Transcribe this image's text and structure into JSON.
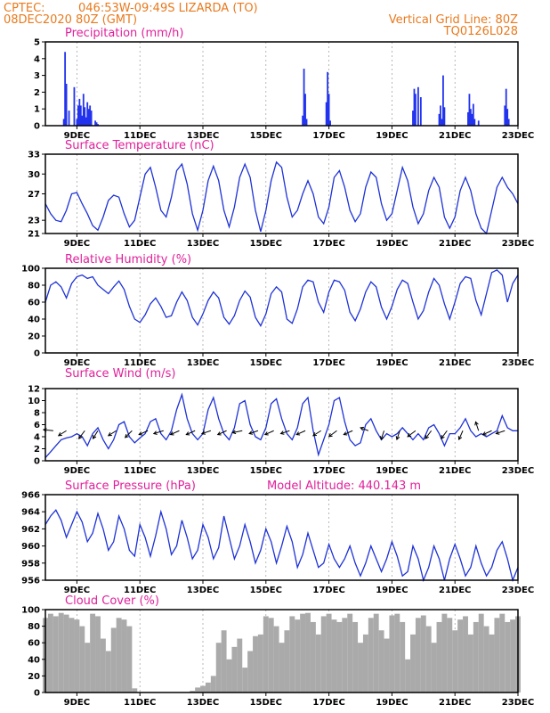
{
  "header": {
    "source": "CPTEC:",
    "location": "046:53W-09:49S  LIZARDA (TO)",
    "date": "08DEC2020 80Z (GMT)",
    "grid_note": "Vertical Grid Line: 80Z",
    "code": "TQ0126L028"
  },
  "x_axis": {
    "start_hour": 0,
    "end_hour": 360,
    "ticks": [
      {
        "hour": 24,
        "label": "9DEC"
      },
      {
        "hour": 72,
        "label": "11DEC"
      },
      {
        "hour": 120,
        "label": "13DEC"
      },
      {
        "hour": 168,
        "label": "15DEC"
      },
      {
        "hour": 216,
        "label": "17DEC"
      },
      {
        "hour": 264,
        "label": "19DEC"
      },
      {
        "hour": 312,
        "label": "21DEC"
      },
      {
        "hour": 360,
        "label": "23DEC"
      }
    ]
  },
  "colors": {
    "line": "#1e32d6",
    "bar": "#2233ee",
    "cloud": "#aaaaaa"
  },
  "chart_data": [
    {
      "type": "bar",
      "title": "Precipitation (mm/h)",
      "ylim": [
        0,
        5
      ],
      "yticks": [
        0,
        1,
        2,
        3,
        4,
        5
      ],
      "x": [
        14,
        15,
        16,
        18,
        22,
        24,
        25,
        26,
        27,
        28,
        29,
        30,
        31,
        32,
        33,
        34,
        35,
        38,
        39,
        40,
        196,
        197,
        198,
        199,
        214,
        215,
        216,
        217,
        280,
        281,
        282,
        284,
        286,
        300,
        301,
        302,
        303,
        304,
        322,
        323,
        324,
        325,
        326,
        327,
        330,
        350,
        351,
        352,
        353
      ],
      "values": [
        0.4,
        4.4,
        2.5,
        0.9,
        2.3,
        0.4,
        1.2,
        1.6,
        1.2,
        0.6,
        1.9,
        1.1,
        0.5,
        1.4,
        1.0,
        1.2,
        0.9,
        0.3,
        0.2,
        0.1,
        0.6,
        3.4,
        1.9,
        0.4,
        1.4,
        3.2,
        1.9,
        0.3,
        0.9,
        2.2,
        1.9,
        2.3,
        1.7,
        0.7,
        1.2,
        0.4,
        3.0,
        1.1,
        0.8,
        1.9,
        1.0,
        0.7,
        1.3,
        0.4,
        0.3,
        1.2,
        2.2,
        1.0,
        0.4
      ]
    },
    {
      "type": "line",
      "title": "Surface Temperature (nC)",
      "ylim": [
        21,
        33
      ],
      "yticks": [
        21,
        23,
        27,
        30,
        33
      ],
      "x": [
        0,
        4,
        8,
        12,
        16,
        20,
        24,
        28,
        32,
        36,
        40,
        44,
        48,
        52,
        56,
        60,
        64,
        68,
        72,
        76,
        80,
        84,
        88,
        92,
        96,
        100,
        104,
        108,
        112,
        116,
        120,
        124,
        128,
        132,
        136,
        140,
        144,
        148,
        152,
        156,
        160,
        164,
        168,
        172,
        176,
        180,
        184,
        188,
        192,
        196,
        200,
        204,
        208,
        212,
        216,
        220,
        224,
        228,
        232,
        236,
        240,
        244,
        248,
        252,
        256,
        260,
        264,
        268,
        272,
        276,
        280,
        284,
        288,
        292,
        296,
        300,
        304,
        308,
        312,
        316,
        320,
        324,
        328,
        332,
        336,
        340,
        344,
        348,
        352,
        356,
        360
      ],
      "values": [
        25.5,
        24.0,
        23.0,
        22.8,
        24.5,
        27.0,
        27.2,
        25.5,
        24.0,
        22.2,
        21.5,
        23.5,
        26.0,
        26.8,
        26.5,
        24.0,
        22.0,
        23.0,
        26.5,
        30.0,
        31.0,
        28.0,
        24.5,
        23.5,
        26.5,
        30.5,
        31.5,
        28.5,
        24.0,
        21.5,
        24.5,
        29.0,
        31.2,
        29.0,
        24.5,
        22.0,
        25.0,
        29.5,
        31.5,
        29.5,
        24.5,
        21.3,
        24.5,
        29.0,
        31.8,
        31.0,
        26.5,
        23.5,
        24.5,
        27.0,
        29.0,
        27.0,
        23.5,
        22.5,
        25.0,
        29.5,
        30.5,
        28.0,
        24.5,
        22.8,
        24.0,
        28.0,
        30.3,
        29.5,
        25.5,
        23.0,
        24.0,
        27.5,
        31.0,
        29.0,
        25.0,
        22.5,
        24.0,
        27.5,
        29.5,
        28.0,
        23.5,
        21.8,
        23.5,
        27.5,
        29.5,
        27.5,
        24.0,
        21.8,
        21.0,
        24.5,
        28.0,
        29.5,
        28.0,
        27.0,
        25.5
      ]
    },
    {
      "type": "line",
      "title": "Relative Humidity (%)",
      "ylim": [
        0,
        100
      ],
      "yticks": [
        0,
        20,
        40,
        60,
        80,
        100
      ],
      "x": [
        0,
        4,
        8,
        12,
        16,
        20,
        24,
        28,
        32,
        36,
        40,
        44,
        48,
        52,
        56,
        60,
        64,
        68,
        72,
        76,
        80,
        84,
        88,
        92,
        96,
        100,
        104,
        108,
        112,
        116,
        120,
        124,
        128,
        132,
        136,
        140,
        144,
        148,
        152,
        156,
        160,
        164,
        168,
        172,
        176,
        180,
        184,
        188,
        192,
        196,
        200,
        204,
        208,
        212,
        216,
        220,
        224,
        228,
        232,
        236,
        240,
        244,
        248,
        252,
        256,
        260,
        264,
        268,
        272,
        276,
        280,
        284,
        288,
        292,
        296,
        300,
        304,
        308,
        312,
        316,
        320,
        324,
        328,
        332,
        336,
        340,
        344,
        348,
        352,
        356,
        360
      ],
      "values": [
        60,
        80,
        84,
        78,
        65,
        82,
        90,
        92,
        88,
        90,
        80,
        75,
        70,
        78,
        85,
        75,
        55,
        40,
        36,
        45,
        58,
        65,
        55,
        42,
        44,
        60,
        72,
        62,
        42,
        33,
        46,
        62,
        72,
        65,
        42,
        34,
        44,
        62,
        73,
        66,
        42,
        32,
        46,
        70,
        78,
        72,
        40,
        35,
        52,
        78,
        86,
        84,
        60,
        48,
        72,
        86,
        84,
        74,
        48,
        38,
        52,
        72,
        84,
        78,
        54,
        40,
        55,
        75,
        86,
        82,
        60,
        40,
        50,
        72,
        88,
        80,
        58,
        40,
        60,
        82,
        90,
        88,
        62,
        45,
        70,
        95,
        98,
        92,
        60,
        82,
        92
      ]
    },
    {
      "type": "line",
      "title": "Surface Wind (m/s)",
      "ylim": [
        0,
        12
      ],
      "yticks": [
        0,
        2,
        4,
        6,
        8,
        10,
        12
      ],
      "x": [
        0,
        4,
        8,
        12,
        16,
        20,
        24,
        28,
        32,
        36,
        40,
        44,
        48,
        52,
        56,
        60,
        64,
        68,
        72,
        76,
        80,
        84,
        88,
        92,
        96,
        100,
        104,
        108,
        112,
        116,
        120,
        124,
        128,
        132,
        136,
        140,
        144,
        148,
        152,
        156,
        160,
        164,
        168,
        172,
        176,
        180,
        184,
        188,
        192,
        196,
        200,
        204,
        208,
        212,
        216,
        220,
        224,
        228,
        232,
        236,
        240,
        244,
        248,
        252,
        256,
        260,
        264,
        268,
        272,
        276,
        280,
        284,
        288,
        292,
        296,
        300,
        304,
        308,
        312,
        316,
        320,
        324,
        328,
        332,
        336,
        340,
        344,
        348,
        352,
        356,
        360
      ],
      "values": [
        0.5,
        1.5,
        2.5,
        3.5,
        3.8,
        4.0,
        4.5,
        4.0,
        2.5,
        4.5,
        5.5,
        3.5,
        2.0,
        3.5,
        6.0,
        6.5,
        4.0,
        3.0,
        3.8,
        4.5,
        6.5,
        7.0,
        4.5,
        3.5,
        5.0,
        8.5,
        11.0,
        7.0,
        4.5,
        3.5,
        4.5,
        8.5,
        10.5,
        7.0,
        4.5,
        3.5,
        5.5,
        9.5,
        10.0,
        6.0,
        4.0,
        3.5,
        5.5,
        9.5,
        10.3,
        7.0,
        4.5,
        3.5,
        5.5,
        9.5,
        10.5,
        5.0,
        1.0,
        3.5,
        6.0,
        10.0,
        10.5,
        6.5,
        3.5,
        2.5,
        3.0,
        6.0,
        7.0,
        5.0,
        3.5,
        4.5,
        4.0,
        4.5,
        5.5,
        4.5,
        3.5,
        4.5,
        3.5,
        5.5,
        6.0,
        4.5,
        2.5,
        4.5,
        4.5,
        5.5,
        7.0,
        5.0,
        4.0,
        4.5,
        4.0,
        4.5,
        5.0,
        7.5,
        5.5,
        5.0,
        5.0
      ],
      "arrows": [
        {
          "hour": 6,
          "u": -1.0,
          "v": 0.1
        },
        {
          "hour": 16,
          "u": -0.8,
          "v": -0.5
        },
        {
          "hour": 30,
          "u": -0.6,
          "v": -0.8
        },
        {
          "hour": 40,
          "u": -0.5,
          "v": -0.8
        },
        {
          "hour": 54,
          "u": -0.8,
          "v": -0.5
        },
        {
          "hour": 66,
          "u": -0.7,
          "v": -0.7
        },
        {
          "hour": 78,
          "u": -0.9,
          "v": -0.4
        },
        {
          "hour": 90,
          "u": -1.0,
          "v": -0.3
        },
        {
          "hour": 102,
          "u": -0.9,
          "v": -0.4
        },
        {
          "hour": 114,
          "u": -0.9,
          "v": -0.4
        },
        {
          "hour": 126,
          "u": -0.9,
          "v": -0.3
        },
        {
          "hour": 138,
          "u": -0.9,
          "v": -0.4
        },
        {
          "hour": 150,
          "u": -1.0,
          "v": -0.2
        },
        {
          "hour": 162,
          "u": -0.9,
          "v": -0.3
        },
        {
          "hour": 174,
          "u": -0.9,
          "v": -0.4
        },
        {
          "hour": 186,
          "u": -0.9,
          "v": -0.3
        },
        {
          "hour": 198,
          "u": -0.9,
          "v": -0.4
        },
        {
          "hour": 210,
          "u": -0.8,
          "v": -0.5
        },
        {
          "hour": 222,
          "u": -0.8,
          "v": -0.6
        },
        {
          "hour": 234,
          "u": -0.9,
          "v": -0.4
        },
        {
          "hour": 246,
          "u": -0.8,
          "v": 0.3
        },
        {
          "hour": 258,
          "u": -0.3,
          "v": -0.9
        },
        {
          "hour": 270,
          "u": -0.3,
          "v": -0.9
        },
        {
          "hour": 282,
          "u": -0.8,
          "v": -0.6
        },
        {
          "hour": 294,
          "u": -0.6,
          "v": -0.8
        },
        {
          "hour": 306,
          "u": -0.6,
          "v": -0.8
        },
        {
          "hour": 318,
          "u": -0.4,
          "v": -0.9
        },
        {
          "hour": 330,
          "u": -0.3,
          "v": 0.9
        },
        {
          "hour": 340,
          "u": -0.9,
          "v": -0.4
        },
        {
          "hour": 350,
          "u": -0.9,
          "v": -0.3
        }
      ]
    },
    {
      "type": "line",
      "title": "Surface Pressure (hPa)",
      "subtitle": "Model Altitude: 440.143 m",
      "ylim": [
        956,
        966
      ],
      "yticks": [
        956,
        958,
        960,
        962,
        964,
        966
      ],
      "x": [
        0,
        4,
        8,
        12,
        16,
        20,
        24,
        28,
        32,
        36,
        40,
        44,
        48,
        52,
        56,
        60,
        64,
        68,
        72,
        76,
        80,
        84,
        88,
        92,
        96,
        100,
        104,
        108,
        112,
        116,
        120,
        124,
        128,
        132,
        136,
        140,
        144,
        148,
        152,
        156,
        160,
        164,
        168,
        172,
        176,
        180,
        184,
        188,
        192,
        196,
        200,
        204,
        208,
        212,
        216,
        220,
        224,
        228,
        232,
        236,
        240,
        244,
        248,
        252,
        256,
        260,
        264,
        268,
        272,
        276,
        280,
        284,
        288,
        292,
        296,
        300,
        304,
        308,
        312,
        316,
        320,
        324,
        328,
        332,
        336,
        340,
        344,
        348,
        352,
        356,
        360
      ],
      "values": [
        962.5,
        963.5,
        964.2,
        963.0,
        961.0,
        962.5,
        964.0,
        962.8,
        960.5,
        961.5,
        963.8,
        962.0,
        959.5,
        960.5,
        963.5,
        962.0,
        959.5,
        958.8,
        962.5,
        961.0,
        958.8,
        961.2,
        964.0,
        962.0,
        959.0,
        960.0,
        963.0,
        961.0,
        958.5,
        959.5,
        962.5,
        961.0,
        958.5,
        959.8,
        963.5,
        961.0,
        958.5,
        960.0,
        962.5,
        960.5,
        958.0,
        959.5,
        962.0,
        960.5,
        958.0,
        960.0,
        962.3,
        960.5,
        957.5,
        959.0,
        961.5,
        959.5,
        957.5,
        958.0,
        960.2,
        958.5,
        957.5,
        958.5,
        960.0,
        958.0,
        956.5,
        958.0,
        960.0,
        958.5,
        957.0,
        958.5,
        960.5,
        958.8,
        956.5,
        957.0,
        960.0,
        958.5,
        956.0,
        957.5,
        960.0,
        958.5,
        956.0,
        958.5,
        960.2,
        958.5,
        956.5,
        957.5,
        960.0,
        958.0,
        956.5,
        957.5,
        959.5,
        960.5,
        958.5,
        956.0,
        957.5
      ]
    },
    {
      "type": "area",
      "title": "Cloud Cover (%)",
      "ylim": [
        0,
        100
      ],
      "yticks": [
        0,
        20,
        40,
        60,
        80,
        100
      ],
      "x": [
        0,
        4,
        8,
        12,
        16,
        20,
        24,
        28,
        32,
        36,
        40,
        44,
        48,
        52,
        56,
        60,
        64,
        68,
        72,
        76,
        80,
        84,
        88,
        92,
        96,
        100,
        104,
        108,
        112,
        116,
        120,
        124,
        128,
        132,
        136,
        140,
        144,
        148,
        152,
        156,
        160,
        164,
        168,
        172,
        176,
        180,
        184,
        188,
        192,
        196,
        200,
        204,
        208,
        212,
        216,
        220,
        224,
        228,
        232,
        236,
        240,
        244,
        248,
        252,
        256,
        260,
        264,
        268,
        272,
        276,
        280,
        284,
        288,
        292,
        296,
        300,
        304,
        308,
        312,
        316,
        320,
        324,
        328,
        332,
        336,
        340,
        344,
        348,
        352,
        356,
        360
      ],
      "values": [
        90,
        95,
        92,
        96,
        94,
        90,
        88,
        80,
        60,
        95,
        92,
        65,
        50,
        78,
        90,
        88,
        80,
        5,
        0,
        0,
        0,
        0,
        0,
        0,
        0,
        0,
        0,
        0,
        2,
        6,
        8,
        12,
        20,
        60,
        75,
        40,
        55,
        65,
        30,
        50,
        68,
        70,
        92,
        90,
        80,
        60,
        75,
        92,
        88,
        95,
        96,
        85,
        70,
        92,
        95,
        88,
        85,
        90,
        95,
        85,
        60,
        70,
        90,
        95,
        75,
        65,
        93,
        95,
        85,
        40,
        70,
        90,
        93,
        80,
        60,
        85,
        95,
        90,
        75,
        88,
        92,
        70,
        85,
        95,
        80,
        70,
        90,
        95,
        85,
        88,
        92
      ]
    }
  ]
}
